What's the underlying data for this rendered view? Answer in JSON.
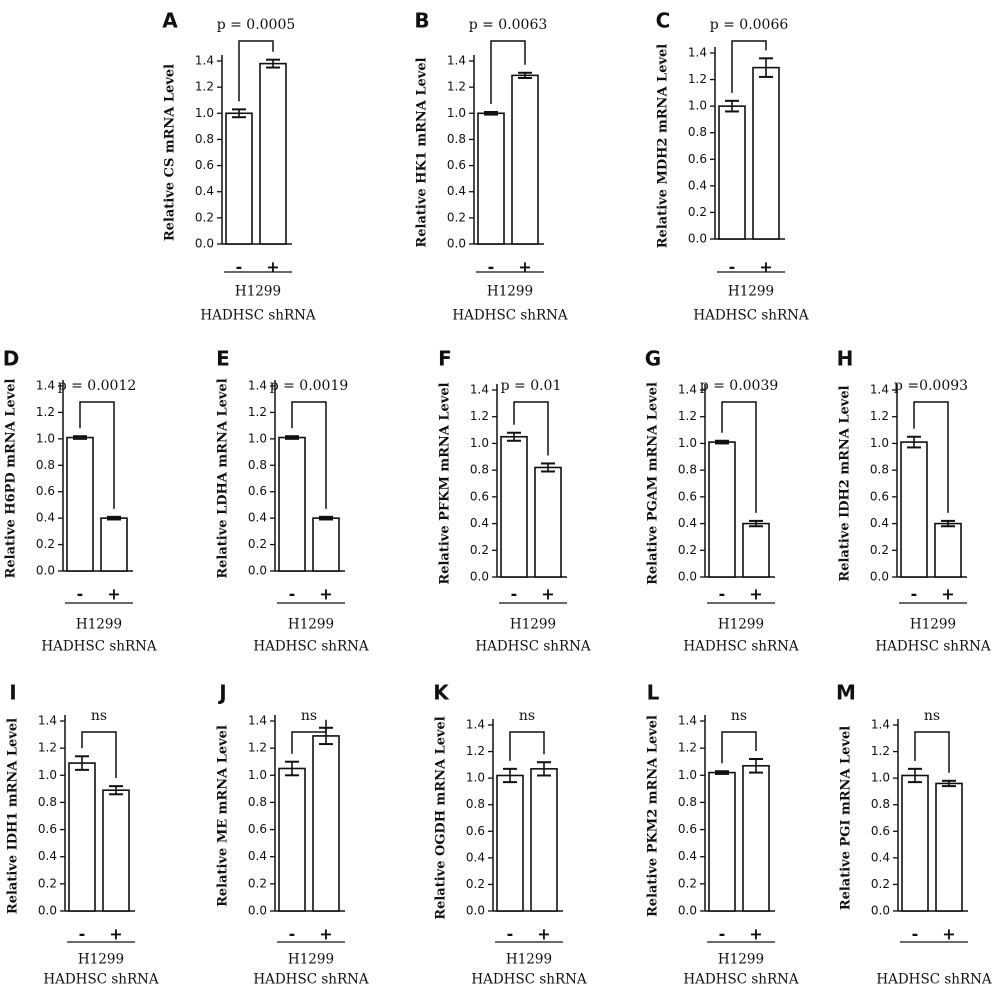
{
  "chart_data": [
    {
      "panel": "A",
      "type": "bar",
      "ylabel": "Relative CS mRNA Level",
      "categories": [
        "-",
        "+"
      ],
      "values": [
        1.0,
        1.38
      ],
      "errors": [
        0.03,
        0.03
      ],
      "annotation": "p = 0.0005",
      "ylim": [
        0,
        1.4
      ],
      "yticks": [
        "0.0",
        "0.2",
        "0.4",
        "0.6",
        "0.8",
        "1.0",
        "1.2",
        "1.4"
      ],
      "group_label": "H1299",
      "treatment_label": "HADHSC shRNA"
    },
    {
      "panel": "B",
      "type": "bar",
      "ylabel": "Relative HK1 mRNA Level",
      "categories": [
        "-",
        "+"
      ],
      "values": [
        1.0,
        1.29
      ],
      "errors": [
        0.01,
        0.02
      ],
      "annotation": "p = 0.0063",
      "ylim": [
        0,
        1.4
      ],
      "yticks": [
        "0.0",
        "0.2",
        "0.4",
        "0.6",
        "0.8",
        "1.0",
        "1.2",
        "1.4"
      ],
      "group_label": "H1299",
      "treatment_label": "HADHSC shRNA"
    },
    {
      "panel": "C",
      "type": "bar",
      "ylabel": "Relative MDH2 mRNA Level",
      "categories": [
        "-",
        "+"
      ],
      "values": [
        1.0,
        1.29
      ],
      "errors": [
        0.04,
        0.07
      ],
      "annotation": "p = 0.0066",
      "ylim": [
        0,
        1.4
      ],
      "yticks": [
        "0.0",
        "0.2",
        "0.4",
        "0.6",
        "0.8",
        "1.0",
        "1.2",
        "1.4"
      ],
      "group_label": "H1299",
      "treatment_label": "HADHSC shRNA"
    },
    {
      "panel": "D",
      "type": "bar",
      "ylabel": "Relative H6PD mRNA Level",
      "categories": [
        "-",
        "+"
      ],
      "values": [
        1.01,
        0.4
      ],
      "errors": [
        0.01,
        0.01
      ],
      "annotation": "p = 0.0012",
      "ylim": [
        0,
        1.4
      ],
      "yticks": [
        "0.0",
        "0.2",
        "0.4",
        "0.6",
        "0.8",
        "1.0",
        "1.2",
        "1.4"
      ],
      "group_label": "H1299",
      "treatment_label": "HADHSC shRNA"
    },
    {
      "panel": "E",
      "type": "bar",
      "ylabel": "Relative LDHA mRNA Level",
      "categories": [
        "-",
        "+"
      ],
      "values": [
        1.01,
        0.4
      ],
      "errors": [
        0.01,
        0.01
      ],
      "annotation": "p = 0.0019",
      "ylim": [
        0,
        1.4
      ],
      "yticks": [
        "0.0",
        "0.2",
        "0.4",
        "0.6",
        "0.8",
        "1.0",
        "1.2",
        "1.4"
      ],
      "group_label": "H1299",
      "treatment_label": "HADHSC shRNA"
    },
    {
      "panel": "F",
      "type": "bar",
      "ylabel": "Relative PFKM mRNA Level",
      "categories": [
        "-",
        "+"
      ],
      "values": [
        1.05,
        0.82
      ],
      "errors": [
        0.03,
        0.03
      ],
      "annotation": "p = 0.01",
      "ylim": [
        0,
        1.4
      ],
      "yticks": [
        "0.0",
        "0.2",
        "0.4",
        "0.6",
        "0.8",
        "1.0",
        "1.2",
        "1.4"
      ],
      "group_label": "H1299",
      "treatment_label": "HADHSC shRNA"
    },
    {
      "panel": "G",
      "type": "bar",
      "ylabel": "Relative PGAM mRNA Level",
      "categories": [
        "-",
        "+"
      ],
      "values": [
        1.01,
        0.4
      ],
      "errors": [
        0.01,
        0.02
      ],
      "annotation": "p = 0.0039",
      "ylim": [
        0,
        1.4
      ],
      "yticks": [
        "0.0",
        "0.2",
        "0.4",
        "0.6",
        "0.8",
        "1.0",
        "1.2",
        "1.4"
      ],
      "group_label": "H1299",
      "treatment_label": "HADHSC shRNA"
    },
    {
      "panel": "H",
      "type": "bar",
      "ylabel": "Relative IDH2 mRNA Level",
      "categories": [
        "-",
        "+"
      ],
      "values": [
        1.01,
        0.4
      ],
      "errors": [
        0.04,
        0.02
      ],
      "annotation": "p =0.0093",
      "ylim": [
        0,
        1.4
      ],
      "yticks": [
        "0.0",
        "0.2",
        "0.4",
        "0.6",
        "0.8",
        "1.0",
        "1.2",
        "1.4"
      ],
      "group_label": "H1299",
      "treatment_label": "HADHSC shRNA"
    },
    {
      "panel": "I",
      "type": "bar",
      "ylabel": "Relative IDH1 mRNA Level",
      "categories": [
        "-",
        "+"
      ],
      "values": [
        1.09,
        0.89
      ],
      "errors": [
        0.05,
        0.03
      ],
      "annotation": "ns",
      "ylim": [
        0,
        1.4
      ],
      "yticks": [
        "0.0",
        "0.2",
        "0.4",
        "0.6",
        "0.8",
        "1.0",
        "1.2",
        "1.4"
      ],
      "group_label": "H1299",
      "treatment_label": "HADHSC shRNA"
    },
    {
      "panel": "J",
      "type": "bar",
      "ylabel": "Relative ME mRNA Level",
      "categories": [
        "-",
        "+"
      ],
      "values": [
        1.05,
        1.29
      ],
      "errors": [
        0.05,
        0.06
      ],
      "annotation": "ns",
      "ylim": [
        0,
        1.4
      ],
      "yticks": [
        "0.0",
        "0.2",
        "0.4",
        "0.6",
        "0.8",
        "1.0",
        "1.2",
        "1.4"
      ],
      "group_label": "H1299",
      "treatment_label": "HADHSC shRNA"
    },
    {
      "panel": "K",
      "type": "bar",
      "ylabel": "Relative OGDH mRNA Level",
      "categories": [
        "-",
        "+"
      ],
      "values": [
        1.02,
        1.07
      ],
      "errors": [
        0.05,
        0.05
      ],
      "annotation": "ns",
      "ylim": [
        0,
        1.4
      ],
      "yticks": [
        "0.0",
        "0.2",
        "0.4",
        "0.6",
        "0.8",
        "1.0",
        "1.2",
        "1.4"
      ],
      "group_label": "H1299",
      "treatment_label": "HADHSC shRNA"
    },
    {
      "panel": "L",
      "type": "bar",
      "ylabel": "Relative PKM2 mRNA Level",
      "categories": [
        "-",
        "+"
      ],
      "values": [
        1.02,
        1.07
      ],
      "errors": [
        0.01,
        0.05
      ],
      "annotation": "ns",
      "ylim": [
        0,
        1.4
      ],
      "yticks": [
        "0.0",
        "0.2",
        "0.4",
        "0.6",
        "0.8",
        "1.0",
        "1.2",
        "1.4"
      ],
      "group_label": "H1299",
      "treatment_label": "HADHSC shRNA"
    },
    {
      "panel": "M",
      "type": "bar",
      "ylabel": "Relative PGI mRNA Level",
      "categories": [
        "-",
        "+"
      ],
      "values": [
        1.02,
        0.96
      ],
      "errors": [
        0.05,
        0.02
      ],
      "annotation": "ns",
      "ylim": [
        0,
        1.4
      ],
      "yticks": [
        "0.0",
        "0.2",
        "0.4",
        "0.6",
        "0.8",
        "1.0",
        "1.2",
        "1.4"
      ],
      "group_label": "",
      "treatment_label": "HADHSC shRNA"
    }
  ]
}
